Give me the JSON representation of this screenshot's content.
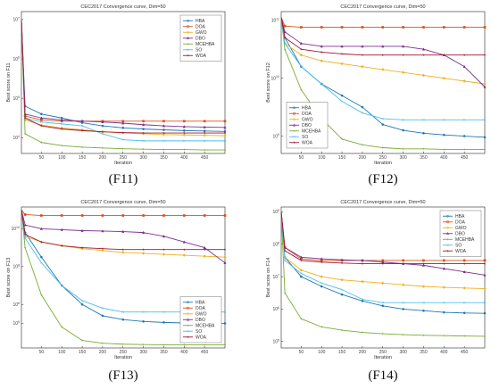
{
  "series_colors": {
    "HBA": "#1f77b4",
    "DOA": "#d95319",
    "GWO": "#edb120",
    "DBO": "#7e2f8e",
    "MCEHBA": "#77ac30",
    "SO": "#4dbeee",
    "WOA": "#a2142f"
  },
  "chart_data": [
    {
      "type": "line",
      "caption": "(F11)",
      "title": "CEC2017 Convergence curve, Dim=50",
      "xlabel": "Iteration",
      "ylabel": "Best score on F11",
      "xlim": [
        1,
        500
      ],
      "xticks": [
        50,
        100,
        150,
        200,
        250,
        300,
        350,
        400,
        450
      ],
      "yscale": "log",
      "ylim_exp": [
        3.6,
        7.2
      ],
      "ytick_exps": [
        4,
        5,
        6,
        7
      ],
      "ytick_labels": [
        "10^4",
        "10^5",
        "10^6",
        "10^7"
      ],
      "legend_loc": "top-right",
      "grid": false,
      "series": [
        {
          "name": "HBA",
          "x": [
            1,
            10,
            50,
            100,
            150,
            200,
            250,
            300,
            350,
            400,
            450,
            500
          ],
          "log10_y": [
            7.0,
            4.8,
            4.6,
            4.5,
            4.38,
            4.3,
            4.25,
            4.22,
            4.2,
            4.18,
            4.17,
            4.16
          ]
        },
        {
          "name": "DOA",
          "x": [
            1,
            10,
            50,
            100,
            150,
            200,
            250,
            300,
            350,
            400,
            450,
            500
          ],
          "log10_y": [
            7.0,
            4.55,
            4.45,
            4.42,
            4.42,
            4.42,
            4.42,
            4.42,
            4.42,
            4.42,
            4.42,
            4.42
          ]
        },
        {
          "name": "GWO",
          "x": [
            1,
            10,
            50,
            100,
            150,
            200,
            250,
            300,
            350,
            400,
            450,
            500
          ],
          "log10_y": [
            7.0,
            4.45,
            4.32,
            4.25,
            4.2,
            4.15,
            4.12,
            4.1,
            4.08,
            4.07,
            4.06,
            4.05
          ]
        },
        {
          "name": "DBO",
          "x": [
            1,
            10,
            50,
            100,
            150,
            200,
            250,
            300,
            350,
            400,
            450,
            500
          ],
          "log10_y": [
            7.0,
            4.6,
            4.5,
            4.45,
            4.42,
            4.4,
            4.37,
            4.33,
            4.3,
            4.28,
            4.27,
            4.26
          ]
        },
        {
          "name": "MCEHBA",
          "x": [
            1,
            10,
            50,
            100,
            150,
            200,
            250,
            300,
            350,
            400,
            450,
            500
          ],
          "log10_y": [
            7.0,
            4.1,
            3.88,
            3.8,
            3.76,
            3.74,
            3.72,
            3.71,
            3.7,
            3.7,
            3.69,
            3.69
          ]
        },
        {
          "name": "SO",
          "x": [
            1,
            10,
            50,
            100,
            150,
            200,
            250,
            300,
            350,
            400,
            450,
            500
          ],
          "log10_y": [
            7.0,
            4.5,
            4.4,
            4.35,
            4.3,
            4.1,
            3.95,
            3.92,
            3.92,
            3.92,
            3.92,
            3.92
          ]
        },
        {
          "name": "WOA",
          "x": [
            1,
            10,
            50,
            100,
            150,
            200,
            250,
            300,
            350,
            400,
            450,
            500
          ],
          "log10_y": [
            7.0,
            4.5,
            4.3,
            4.22,
            4.18,
            4.15,
            4.13,
            4.12,
            4.12,
            4.12,
            4.12,
            4.12
          ]
        }
      ]
    },
    {
      "type": "line",
      "caption": "(F12)",
      "title": "CEC2017 Convergence curve, Dim=50",
      "xlabel": "Iteration",
      "ylabel": "Best score on F12",
      "xlim": [
        1,
        500
      ],
      "xticks": [
        50,
        100,
        150,
        200,
        250,
        300,
        350,
        400,
        450
      ],
      "yscale": "log",
      "ylim_exp": [
        8.7,
        11.15
      ],
      "ytick_exps": [
        9,
        10,
        11
      ],
      "ytick_labels": [
        "10^9",
        "10^10",
        "10^11"
      ],
      "legend_loc": "bottom-left",
      "grid": false,
      "series": [
        {
          "name": "HBA",
          "x": [
            1,
            10,
            50,
            100,
            150,
            200,
            250,
            300,
            350,
            400,
            450,
            500
          ],
          "log10_y": [
            11.05,
            10.7,
            10.2,
            9.9,
            9.7,
            9.5,
            9.2,
            9.1,
            9.05,
            9.02,
            9.0,
            8.98
          ]
        },
        {
          "name": "DOA",
          "x": [
            1,
            10,
            50,
            100,
            150,
            200,
            250,
            300,
            350,
            400,
            450,
            500
          ],
          "log10_y": [
            11.05,
            10.9,
            10.88,
            10.88,
            10.88,
            10.88,
            10.88,
            10.88,
            10.88,
            10.88,
            10.88,
            10.88
          ]
        },
        {
          "name": "GWO",
          "x": [
            1,
            10,
            50,
            100,
            150,
            200,
            250,
            300,
            350,
            400,
            450,
            500
          ],
          "log10_y": [
            11.05,
            10.6,
            10.4,
            10.3,
            10.25,
            10.2,
            10.15,
            10.1,
            10.05,
            10.0,
            9.95,
            9.9
          ]
        },
        {
          "name": "DBO",
          "x": [
            1,
            10,
            50,
            100,
            150,
            200,
            250,
            300,
            350,
            400,
            450,
            500
          ],
          "log10_y": [
            11.05,
            10.8,
            10.6,
            10.55,
            10.55,
            10.55,
            10.55,
            10.55,
            10.5,
            10.4,
            10.2,
            9.85
          ]
        },
        {
          "name": "MCEHBA",
          "x": [
            1,
            10,
            50,
            100,
            150,
            200,
            250,
            300,
            350,
            400,
            450,
            500
          ],
          "log10_y": [
            11.05,
            10.5,
            9.8,
            9.3,
            8.95,
            8.85,
            8.8,
            8.78,
            8.78,
            8.77,
            8.77,
            8.77
          ]
        },
        {
          "name": "SO",
          "x": [
            1,
            10,
            50,
            100,
            150,
            200,
            250,
            300,
            350,
            400,
            450,
            500
          ],
          "log10_y": [
            11.05,
            10.6,
            10.2,
            9.9,
            9.6,
            9.4,
            9.3,
            9.28,
            9.28,
            9.28,
            9.28,
            9.28
          ]
        },
        {
          "name": "WOA",
          "x": [
            1,
            10,
            50,
            100,
            150,
            200,
            250,
            300,
            350,
            400,
            450,
            500
          ],
          "log10_y": [
            11.05,
            10.7,
            10.5,
            10.45,
            10.42,
            10.4,
            10.4,
            10.4,
            10.4,
            10.4,
            10.4,
            10.4
          ]
        }
      ]
    },
    {
      "type": "line",
      "caption": "(F13)",
      "title": "CEC2017 Convergence curve, Dim=50",
      "xlabel": "Iteration",
      "ylabel": "Best score on F13",
      "xlim": [
        1,
        500
      ],
      "xticks": [
        50,
        100,
        150,
        200,
        250,
        300,
        350,
        400,
        450
      ],
      "yscale": "log",
      "ylim_exp": [
        3.7,
        11.15
      ],
      "ytick_exps": [
        5,
        6,
        8,
        10
      ],
      "ytick_labels": [
        "10^5",
        "10^6",
        "10^8",
        "10^10"
      ],
      "legend_loc": "bottom-right",
      "grid": false,
      "series": [
        {
          "name": "HBA",
          "x": [
            1,
            10,
            50,
            100,
            150,
            200,
            250,
            300,
            350,
            400,
            450,
            500
          ],
          "log10_y": [
            11.0,
            9.8,
            8.5,
            7.0,
            6.0,
            5.4,
            5.2,
            5.1,
            5.05,
            5.02,
            5.0,
            5.0
          ]
        },
        {
          "name": "DOA",
          "x": [
            1,
            10,
            50,
            100,
            150,
            200,
            250,
            300,
            350,
            400,
            450,
            500
          ],
          "log10_y": [
            11.0,
            10.75,
            10.7,
            10.7,
            10.7,
            10.7,
            10.7,
            10.7,
            10.7,
            10.7,
            10.7,
            10.7
          ]
        },
        {
          "name": "GWO",
          "x": [
            1,
            10,
            50,
            100,
            150,
            200,
            250,
            300,
            350,
            400,
            450,
            500
          ],
          "log10_y": [
            11.0,
            9.6,
            9.3,
            9.1,
            8.95,
            8.85,
            8.75,
            8.7,
            8.65,
            8.6,
            8.55,
            8.5
          ]
        },
        {
          "name": "DBO",
          "x": [
            1,
            10,
            50,
            100,
            150,
            200,
            250,
            300,
            350,
            400,
            450,
            500
          ],
          "log10_y": [
            11.0,
            10.2,
            10.0,
            9.95,
            9.9,
            9.88,
            9.85,
            9.8,
            9.6,
            9.3,
            9.0,
            8.2
          ]
        },
        {
          "name": "MCEHBA",
          "x": [
            1,
            10,
            50,
            100,
            150,
            200,
            250,
            300,
            350,
            400,
            450,
            500
          ],
          "log10_y": [
            11.0,
            9.0,
            6.5,
            4.8,
            4.1,
            3.95,
            3.9,
            3.88,
            3.87,
            3.87,
            3.86,
            3.86
          ]
        },
        {
          "name": "SO",
          "x": [
            1,
            10,
            50,
            100,
            150,
            200,
            250,
            300,
            350,
            400,
            450,
            500
          ],
          "log10_y": [
            11.0,
            9.5,
            8.2,
            7.0,
            6.2,
            5.8,
            5.6,
            5.6,
            5.6,
            5.6,
            5.6,
            5.6
          ]
        },
        {
          "name": "WOA",
          "x": [
            1,
            10,
            50,
            100,
            150,
            200,
            250,
            300,
            350,
            400,
            450,
            500
          ],
          "log10_y": [
            11.0,
            9.7,
            9.3,
            9.1,
            9.0,
            8.95,
            8.9,
            8.9,
            8.9,
            8.9,
            8.9,
            8.9
          ]
        }
      ]
    },
    {
      "type": "line",
      "caption": "(F14)",
      "title": "CEC2017 Convergence curve, Dim=50",
      "xlabel": "Iteration",
      "ylabel": "Best score on F14",
      "xlim": [
        1,
        500
      ],
      "xticks": [
        50,
        100,
        150,
        200,
        250,
        300,
        350,
        400,
        450
      ],
      "yscale": "log",
      "ylim_exp": [
        4.8,
        9.15
      ],
      "ytick_exps": [
        5,
        6,
        7,
        8,
        9
      ],
      "ytick_labels": [
        "10^5",
        "10^6",
        "10^7",
        "10^8",
        "10^9"
      ],
      "legend_loc": "top-right",
      "grid": false,
      "series": [
        {
          "name": "HBA",
          "x": [
            1,
            10,
            50,
            100,
            150,
            200,
            250,
            300,
            350,
            400,
            450,
            500
          ],
          "log10_y": [
            9.0,
            7.6,
            7.0,
            6.7,
            6.45,
            6.25,
            6.1,
            6.0,
            5.95,
            5.9,
            5.88,
            5.87
          ]
        },
        {
          "name": "DOA",
          "x": [
            1,
            10,
            50,
            100,
            150,
            200,
            250,
            300,
            350,
            400,
            450,
            500
          ],
          "log10_y": [
            9.0,
            7.9,
            7.55,
            7.5,
            7.5,
            7.5,
            7.5,
            7.5,
            7.5,
            7.5,
            7.5,
            7.5
          ]
        },
        {
          "name": "GWO",
          "x": [
            1,
            10,
            50,
            100,
            150,
            200,
            250,
            300,
            350,
            400,
            450,
            500
          ],
          "log10_y": [
            9.0,
            7.6,
            7.2,
            7.0,
            6.9,
            6.85,
            6.8,
            6.75,
            6.7,
            6.67,
            6.65,
            6.63
          ]
        },
        {
          "name": "DBO",
          "x": [
            1,
            10,
            50,
            100,
            150,
            200,
            250,
            300,
            350,
            400,
            450,
            500
          ],
          "log10_y": [
            9.0,
            7.9,
            7.6,
            7.55,
            7.52,
            7.5,
            7.45,
            7.4,
            7.35,
            7.25,
            7.15,
            7.05
          ]
        },
        {
          "name": "MCEHBA",
          "x": [
            1,
            10,
            50,
            100,
            150,
            200,
            250,
            300,
            350,
            400,
            450,
            500
          ],
          "log10_y": [
            9.0,
            6.5,
            5.7,
            5.45,
            5.35,
            5.28,
            5.24,
            5.21,
            5.19,
            5.18,
            5.17,
            5.16
          ]
        },
        {
          "name": "SO",
          "x": [
            1,
            10,
            50,
            100,
            150,
            200,
            250,
            300,
            350,
            400,
            450,
            500
          ],
          "log10_y": [
            9.0,
            7.5,
            7.1,
            6.8,
            6.6,
            6.3,
            6.2,
            6.2,
            6.2,
            6.2,
            6.2,
            6.2
          ]
        },
        {
          "name": "WOA",
          "x": [
            1,
            10,
            50,
            100,
            150,
            200,
            250,
            300,
            350,
            400,
            450,
            500
          ],
          "log10_y": [
            9.0,
            7.8,
            7.5,
            7.45,
            7.42,
            7.4,
            7.4,
            7.4,
            7.4,
            7.4,
            7.4,
            7.4
          ]
        }
      ]
    }
  ]
}
